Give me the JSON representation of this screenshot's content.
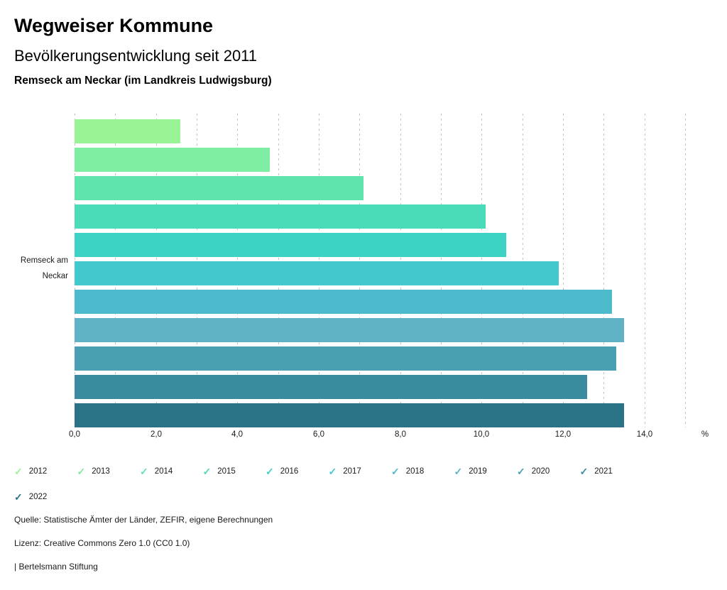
{
  "header": {
    "title": "Wegweiser Kommune",
    "subtitle": "Bevölkerungsentwicklung seit 2011",
    "region": "Remseck am Neckar (im Landkreis Ludwigsburg)"
  },
  "chart_data": {
    "type": "bar",
    "orientation": "horizontal",
    "title": "Bevölkerungsentwicklung seit 2011",
    "categories": [
      "2012",
      "2013",
      "2014",
      "2015",
      "2016",
      "2017",
      "2018",
      "2019",
      "2020",
      "2021",
      "2022"
    ],
    "values": [
      2.6,
      4.8,
      7.1,
      10.1,
      10.6,
      11.9,
      13.2,
      13.5,
      13.3,
      12.6,
      13.5
    ],
    "colors": [
      "#9AF497",
      "#7CEDA1",
      "#5FE5AC",
      "#4ADCB8",
      "#3DD3C4",
      "#41C9CD",
      "#4DBACB",
      "#5FB2C6",
      "#4AA0B3",
      "#3A8BA0",
      "#2A7286"
    ],
    "group_label_lines": [
      "Remseck am",
      "Neckar"
    ],
    "xlabel": "%",
    "xlim": [
      0,
      15
    ],
    "gridline_step": 1,
    "grid": true,
    "gridline_color": "#c4c4c4",
    "x_tick_values": [
      0,
      2,
      4,
      6,
      8,
      10,
      12,
      14
    ],
    "x_tick_labels": [
      "0,0",
      "2,0",
      "4,0",
      "6,0",
      "8,0",
      "10,0",
      "12,0",
      "14,0"
    ],
    "legend_position": "bottom"
  },
  "legend": {
    "check_icon": "✓"
  },
  "footer": {
    "source_line": "Quelle: Statistische Ämter der Länder, ZEFIR, eigene Berechnungen",
    "license_line": "Lizenz: Creative Commons Zero 1.0 (CC0 1.0)",
    "attribution_line": "| Bertelsmann Stiftung"
  }
}
